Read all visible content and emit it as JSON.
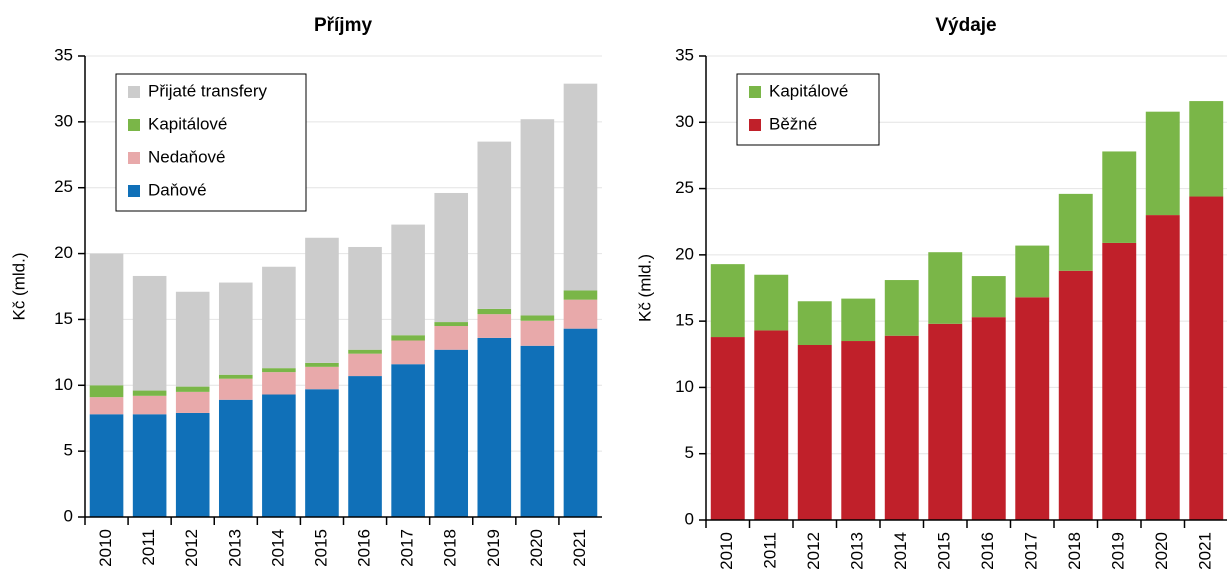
{
  "chart_data": [
    {
      "type": "stacked_bar",
      "title": "Příjmy",
      "ylabel": "Kč (mld.)",
      "categories": [
        "2010",
        "2011",
        "2012",
        "2013",
        "2014",
        "2015",
        "2016",
        "2017",
        "2018",
        "2019",
        "2020",
        "2021"
      ],
      "series": [
        {
          "name": "Daňové",
          "color": "#1070b8",
          "values": [
            7.8,
            7.8,
            7.9,
            8.9,
            9.3,
            9.7,
            10.7,
            11.6,
            12.7,
            13.6,
            13.0,
            14.3
          ]
        },
        {
          "name": "Nedaňové",
          "color": "#e8a9aa",
          "values": [
            1.3,
            1.4,
            1.6,
            1.6,
            1.7,
            1.7,
            1.7,
            1.8,
            1.8,
            1.8,
            1.9,
            2.2
          ]
        },
        {
          "name": "Kapitálové",
          "color": "#7ab648",
          "values": [
            0.9,
            0.4,
            0.4,
            0.3,
            0.3,
            0.3,
            0.3,
            0.4,
            0.3,
            0.4,
            0.4,
            0.7
          ]
        },
        {
          "name": "Přijaté transfery",
          "color": "#cccccc",
          "values": [
            10.0,
            8.7,
            7.2,
            7.0,
            7.7,
            9.5,
            7.8,
            8.4,
            9.8,
            12.7,
            14.9,
            15.7
          ]
        }
      ],
      "ylim": [
        0,
        35
      ],
      "yticks": [
        0,
        5,
        10,
        15,
        20,
        25,
        30,
        35
      ],
      "grid": true,
      "legend": "upper left"
    },
    {
      "type": "stacked_bar",
      "title": "Výdaje",
      "ylabel": "Kč (mld.)",
      "categories": [
        "2010",
        "2011",
        "2012",
        "2013",
        "2014",
        "2015",
        "2016",
        "2017",
        "2018",
        "2019",
        "2020",
        "2021"
      ],
      "series": [
        {
          "name": "Běžné",
          "color": "#c0202a",
          "values": [
            13.8,
            14.3,
            13.2,
            13.5,
            13.9,
            14.8,
            15.3,
            16.8,
            18.8,
            20.9,
            23.0,
            24.4
          ]
        },
        {
          "name": "Kapitálové",
          "color": "#7ab648",
          "values": [
            5.5,
            4.2,
            3.3,
            3.2,
            4.2,
            5.4,
            3.1,
            3.9,
            5.8,
            6.9,
            7.8,
            7.2
          ]
        }
      ],
      "ylim": [
        0,
        35
      ],
      "yticks": [
        0,
        5,
        10,
        15,
        20,
        25,
        30,
        35
      ],
      "grid": true,
      "legend": "upper left"
    }
  ]
}
